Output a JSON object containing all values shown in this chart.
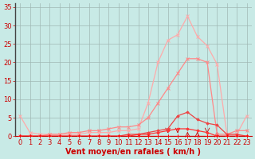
{
  "xlabel": "Vent moyen/en rafales ( km/h )",
  "bg_color": "#c8eae6",
  "grid_color": "#a0b8b4",
  "xlim": [
    -0.5,
    23.5
  ],
  "ylim": [
    0,
    36
  ],
  "yticks": [
    0,
    5,
    10,
    15,
    20,
    25,
    30,
    35
  ],
  "xticks": [
    0,
    1,
    2,
    3,
    4,
    5,
    6,
    7,
    8,
    9,
    10,
    11,
    12,
    13,
    14,
    15,
    16,
    17,
    18,
    19,
    20,
    21,
    22,
    23
  ],
  "line_pale1_x": [
    0,
    1,
    2,
    3,
    4,
    5,
    6,
    7,
    8,
    9,
    10,
    11,
    12,
    13,
    14,
    15,
    16,
    17,
    18,
    19,
    20,
    21,
    22,
    23
  ],
  "line_pale1_y": [
    5.5,
    1.0,
    0.5,
    0.5,
    0.5,
    0.5,
    0.5,
    1.0,
    1.0,
    1.0,
    1.5,
    1.5,
    2.0,
    9.0,
    20.0,
    26.0,
    27.5,
    32.5,
    27.0,
    24.5,
    19.5,
    0.5,
    0.5,
    5.5
  ],
  "line_pale1_color": "#ffaaaa",
  "line_pale2_x": [
    0,
    1,
    2,
    3,
    4,
    5,
    6,
    7,
    8,
    9,
    10,
    11,
    12,
    13,
    14,
    15,
    16,
    17,
    18,
    19,
    20,
    21,
    22,
    23
  ],
  "line_pale2_y": [
    0,
    0,
    0,
    0.5,
    0.5,
    1.0,
    1.0,
    1.5,
    1.5,
    2.0,
    2.5,
    2.5,
    3.0,
    5.0,
    9.0,
    13.0,
    17.0,
    21.0,
    21.0,
    20.0,
    0.5,
    0.5,
    1.5,
    1.5
  ],
  "line_pale2_color": "#ff8888",
  "line_med1_x": [
    0,
    1,
    2,
    3,
    4,
    5,
    6,
    7,
    8,
    9,
    10,
    11,
    12,
    13,
    14,
    15,
    16,
    17,
    18,
    19,
    20,
    21,
    22,
    23
  ],
  "line_med1_y": [
    0,
    0,
    0,
    0,
    0,
    0,
    0,
    0,
    0,
    0,
    0,
    0.5,
    0.5,
    1.0,
    1.5,
    2.0,
    5.5,
    6.5,
    4.5,
    3.5,
    3.0,
    0.5,
    0.5,
    0
  ],
  "line_med1_color": "#ee4444",
  "line_med2_x": [
    0,
    1,
    2,
    3,
    4,
    5,
    6,
    7,
    8,
    9,
    10,
    11,
    12,
    13,
    14,
    15,
    16,
    17,
    18,
    19,
    20,
    21,
    22,
    23
  ],
  "line_med2_y": [
    0,
    0,
    0,
    0,
    0,
    0,
    0,
    0,
    0,
    0,
    0,
    0,
    0.5,
    0.5,
    1.0,
    1.5,
    2.0,
    2.0,
    1.5,
    1.0,
    0,
    0,
    0,
    0
  ],
  "line_med2_color": "#ff3333",
  "line_base_x": [
    0,
    1,
    2,
    3,
    4,
    5,
    6,
    7,
    8,
    9,
    10,
    11,
    12,
    13,
    14,
    15,
    16,
    17,
    18,
    19,
    20,
    21,
    22,
    23
  ],
  "line_base_y": [
    0,
    0,
    0,
    0,
    0,
    0,
    0,
    0,
    0,
    0,
    0,
    0,
    0,
    0,
    0,
    0,
    0,
    0,
    0,
    0,
    0,
    0,
    0,
    0
  ],
  "line_base_color": "#ff0000",
  "fontsize_label": 7,
  "tick_fontsize": 6
}
